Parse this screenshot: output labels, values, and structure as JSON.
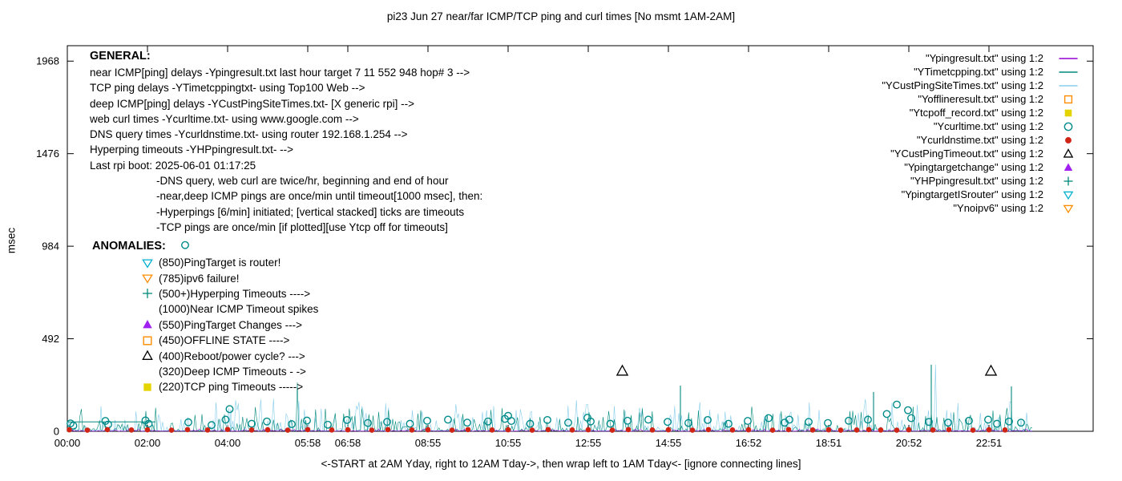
{
  "general": {
    "heading": "GENERAL:",
    "lines": [
      {
        "text": "near ICMP[ping] delays -Ypingresult.txt last hour target 7 11 552 948 hop# 3 -->",
        "indent": 0
      },
      {
        "text": "TCP ping delays -YTimetcppingtxt- using Top100 Web -->",
        "indent": 0
      },
      {
        "text": "deep ICMP[ping] delays -YCustPingSiteTimes.txt- [X generic rpi] -->",
        "indent": 0
      },
      {
        "text": "web curl times -Ycurltime.txt- using www.google.com -->",
        "indent": 0
      },
      {
        "text": "DNS query times -Ycurldnstime.txt- using router 192.168.1.254 -->",
        "indent": 0
      },
      {
        "text": "Hyperping timeouts -YHPpingresult.txt- -->",
        "indent": 0
      },
      {
        "text": "Last rpi boot: 2025-06-01 01:17:25",
        "indent": 0
      },
      {
        "text": "-DNS query, web curl are twice/hr, beginning and end of hour",
        "indent": 1
      },
      {
        "text": "-near,deep ICMP pings are once/min until timeout[1000 msec], then:",
        "indent": 1
      },
      {
        "text": "-Hyperpings [6/min] initiated; [vertical stacked] ticks are timeouts",
        "indent": 1
      },
      {
        "text": "-TCP pings are once/min [if plotted][use Ytcp off for timeouts]",
        "indent": 1
      }
    ]
  },
  "anomalies": {
    "heading": "ANOMALIES:",
    "items": [
      {
        "marker": "triangle-down-open",
        "color": "#00b0d0",
        "text": "(850)PingTarget is router!"
      },
      {
        "marker": "triangle-down-open",
        "color": "#ff8c00",
        "text": "(785)ipv6 failure!"
      },
      {
        "marker": "plus",
        "color": "#00897b",
        "text": "(500+)Hyperping Timeouts ---->"
      },
      {
        "marker": null,
        "color": null,
        "text": "(1000)Near ICMP Timeout spikes"
      },
      {
        "marker": "triangle-up-filled",
        "color": "#a020f0",
        "text": "(550)PingTarget Changes --->"
      },
      {
        "marker": "square-open",
        "color": "#ff8c00",
        "text": "(450)OFFLINE STATE ---->"
      },
      {
        "marker": "triangle-up-open",
        "color": "#000000",
        "text": "(400)Reboot/power cycle? --->"
      },
      {
        "marker": null,
        "color": null,
        "text": "(320)Deep ICMP Timeouts - ->"
      },
      {
        "marker": "square-filled",
        "color": "#e3d400",
        "text": "(220)TCP ping Timeouts ----->"
      }
    ]
  },
  "chart_data": {
    "type": "scatter",
    "title": "pi23 Jun 27  near/far ICMP/TCP ping and curl times [No msmt 1AM-2AM]",
    "ylabel": "msec",
    "xlabel": "<-START at 2AM Yday, right to 12AM Tday->, then wrap left to 1AM Tday<- [ignore connecting lines]",
    "grid": false,
    "legend_position": "top-right-inside",
    "ylim": [
      0,
      2050
    ],
    "y_ticks": [
      0,
      492,
      984,
      1476,
      1968
    ],
    "x_hours_range": [
      0,
      25.6
    ],
    "x_ticks": [
      {
        "label": "00:00",
        "hour": 0
      },
      {
        "label": "02:00",
        "hour": 2
      },
      {
        "label": "04:00",
        "hour": 4
      },
      {
        "label": "05:58",
        "hour": 6
      },
      {
        "label": "06:58",
        "hour": 7
      },
      {
        "label": "08:55",
        "hour": 9
      },
      {
        "label": "10:55",
        "hour": 11
      },
      {
        "label": "12:55",
        "hour": 13
      },
      {
        "label": "14:55",
        "hour": 15
      },
      {
        "label": "16:52",
        "hour": 17
      },
      {
        "label": "18:51",
        "hour": 19
      },
      {
        "label": "20:52",
        "hour": 21
      },
      {
        "label": "22:51",
        "hour": 23
      }
    ],
    "legend": [
      {
        "label": "\"Ypingresult.txt\" using 1:2",
        "marker": "line",
        "color": "#9400d3"
      },
      {
        "label": "\"YTimetcpping.txt\" using 1:2",
        "marker": "line",
        "color": "#00897b"
      },
      {
        "label": "\"YCustPingSiteTimes.txt\" using 1:2",
        "marker": "line",
        "color": "#87ceeb"
      },
      {
        "label": "\"Yofflineresult.txt\" using 1:2",
        "marker": "square-open",
        "color": "#ff8c00"
      },
      {
        "label": "\"Ytcpoff_record.txt\" using 1:2",
        "marker": "square-filled",
        "color": "#e3d400"
      },
      {
        "label": "\"Ycurltime.txt\" using 1:2",
        "marker": "circle-open",
        "color": "#008b8b"
      },
      {
        "label": "\"Ycurldnstime.txt\" using 1:2",
        "marker": "circle-filled",
        "color": "#d02515"
      },
      {
        "label": "\"YCustPingTimeout.txt\" using 1:2",
        "marker": "triangle-up-open",
        "color": "#000000"
      },
      {
        "label": "\"Ypingtargetchange\" using 1:2",
        "marker": "triangle-up-filled",
        "color": "#a020f0"
      },
      {
        "label": "\"YHPpingresult.txt\" using 1:2",
        "marker": "plus",
        "color": "#00897b"
      },
      {
        "label": "\"YpingtargetISrouter\" using 1:2",
        "marker": "triangle-down-open",
        "color": "#00b0d0"
      },
      {
        "label": "\"Ynoipv6\" using 1:2",
        "marker": "triangle-down-open",
        "color": "#ff8c00"
      }
    ],
    "series": [
      {
        "name": "YCustPingSiteTimes.txt",
        "kind": "noise",
        "color": "#87ceeb",
        "base": 3,
        "amp": 170,
        "seed": 1337,
        "domain": [
          0,
          24.1
        ],
        "spikes": [
          [
            4.08,
            115
          ]
        ]
      },
      {
        "name": "YTimetcpping.txt",
        "kind": "noise",
        "color": "#00897b",
        "base": 2,
        "amp": 130,
        "seed": 777,
        "domain": [
          0,
          24.1
        ],
        "level_segments": [
          [
            0,
            2.2,
            50
          ]
        ],
        "spikes": [
          [
            15.3,
            243
          ],
          [
            20.12,
            209
          ],
          [
            21.56,
            354
          ],
          [
            23.56,
            239
          ]
        ]
      },
      {
        "name": "Ypingresult.txt",
        "kind": "noise",
        "color": "#9400d3",
        "base": 1,
        "amp": 12,
        "seed": 42,
        "domain": [
          0,
          24.1
        ]
      },
      {
        "name": "Ycurltime.txt",
        "kind": "points",
        "marker": "circle-open",
        "color": "#008b8b",
        "points": [
          [
            0.08,
            42
          ],
          [
            0.15,
            30
          ],
          [
            0.95,
            55
          ],
          [
            1.02,
            36
          ],
          [
            1.95,
            58
          ],
          [
            2.03,
            40
          ],
          [
            2.94,
            990
          ],
          [
            3.02,
            48
          ],
          [
            3.6,
            33
          ],
          [
            3.95,
            62
          ],
          [
            4.05,
            118
          ],
          [
            4.6,
            40
          ],
          [
            4.98,
            52
          ],
          [
            5.6,
            38
          ],
          [
            5.98,
            57
          ],
          [
            6.5,
            35
          ],
          [
            6.98,
            60
          ],
          [
            7.5,
            44
          ],
          [
            7.98,
            50
          ],
          [
            8.55,
            40
          ],
          [
            8.98,
            56
          ],
          [
            9.5,
            62
          ],
          [
            9.98,
            46
          ],
          [
            10.5,
            52
          ],
          [
            10.92,
            66
          ],
          [
            11.0,
            82
          ],
          [
            11.08,
            55
          ],
          [
            11.55,
            40
          ],
          [
            11.98,
            60
          ],
          [
            12.5,
            46
          ],
          [
            12.98,
            72
          ],
          [
            13.06,
            52
          ],
          [
            13.55,
            40
          ],
          [
            13.98,
            56
          ],
          [
            14.5,
            62
          ],
          [
            14.98,
            50
          ],
          [
            15.5,
            44
          ],
          [
            15.98,
            60
          ],
          [
            16.5,
            40
          ],
          [
            16.98,
            55
          ],
          [
            17.5,
            70
          ],
          [
            17.9,
            46
          ],
          [
            18.02,
            62
          ],
          [
            18.5,
            50
          ],
          [
            18.98,
            44
          ],
          [
            19.5,
            56
          ],
          [
            19.98,
            62
          ],
          [
            20.45,
            92
          ],
          [
            20.7,
            142
          ],
          [
            20.98,
            112
          ],
          [
            21.06,
            70
          ],
          [
            21.5,
            50
          ],
          [
            21.98,
            46
          ],
          [
            22.5,
            56
          ],
          [
            22.98,
            62
          ],
          [
            23.2,
            40
          ],
          [
            23.5,
            52
          ],
          [
            23.8,
            46
          ]
        ]
      },
      {
        "name": "Ycurldnstime.txt",
        "kind": "points",
        "marker": "circle-filled",
        "color": "#d02515",
        "points": [
          [
            0.05,
            8
          ],
          [
            0.5,
            6
          ],
          [
            1.0,
            9
          ],
          [
            1.6,
            7
          ],
          [
            2.0,
            8
          ],
          [
            2.6,
            6
          ],
          [
            3.0,
            9
          ],
          [
            3.5,
            7
          ],
          [
            4.0,
            10
          ],
          [
            4.6,
            7
          ],
          [
            5.0,
            8
          ],
          [
            5.5,
            6
          ],
          [
            6.0,
            9
          ],
          [
            6.6,
            7
          ],
          [
            7.0,
            8
          ],
          [
            7.6,
            6
          ],
          [
            8.0,
            9
          ],
          [
            8.6,
            7
          ],
          [
            9.0,
            8
          ],
          [
            9.6,
            6
          ],
          [
            10.0,
            9
          ],
          [
            10.6,
            7
          ],
          [
            11.0,
            8
          ],
          [
            11.6,
            6
          ],
          [
            12.0,
            9
          ],
          [
            12.6,
            7
          ],
          [
            13.0,
            8
          ],
          [
            13.6,
            6
          ],
          [
            14.0,
            9
          ],
          [
            14.6,
            7
          ],
          [
            15.0,
            8
          ],
          [
            15.6,
            6
          ],
          [
            16.0,
            9
          ],
          [
            16.6,
            7
          ],
          [
            17.0,
            8
          ],
          [
            17.6,
            6
          ],
          [
            18.0,
            9
          ],
          [
            18.6,
            7
          ],
          [
            19.0,
            8
          ],
          [
            19.3,
            6
          ],
          [
            19.7,
            7
          ],
          [
            20.0,
            9
          ],
          [
            20.3,
            7
          ],
          [
            20.7,
            6
          ],
          [
            21.0,
            8
          ],
          [
            21.6,
            7
          ],
          [
            22.0,
            9
          ],
          [
            22.6,
            6
          ],
          [
            23.0,
            8
          ],
          [
            23.4,
            7
          ]
        ]
      },
      {
        "name": "YCustPingTimeout.txt",
        "kind": "points",
        "marker": "triangle-up-open",
        "color": "#000000",
        "points": [
          [
            13.85,
            320
          ],
          [
            23.05,
            320
          ]
        ]
      }
    ]
  }
}
